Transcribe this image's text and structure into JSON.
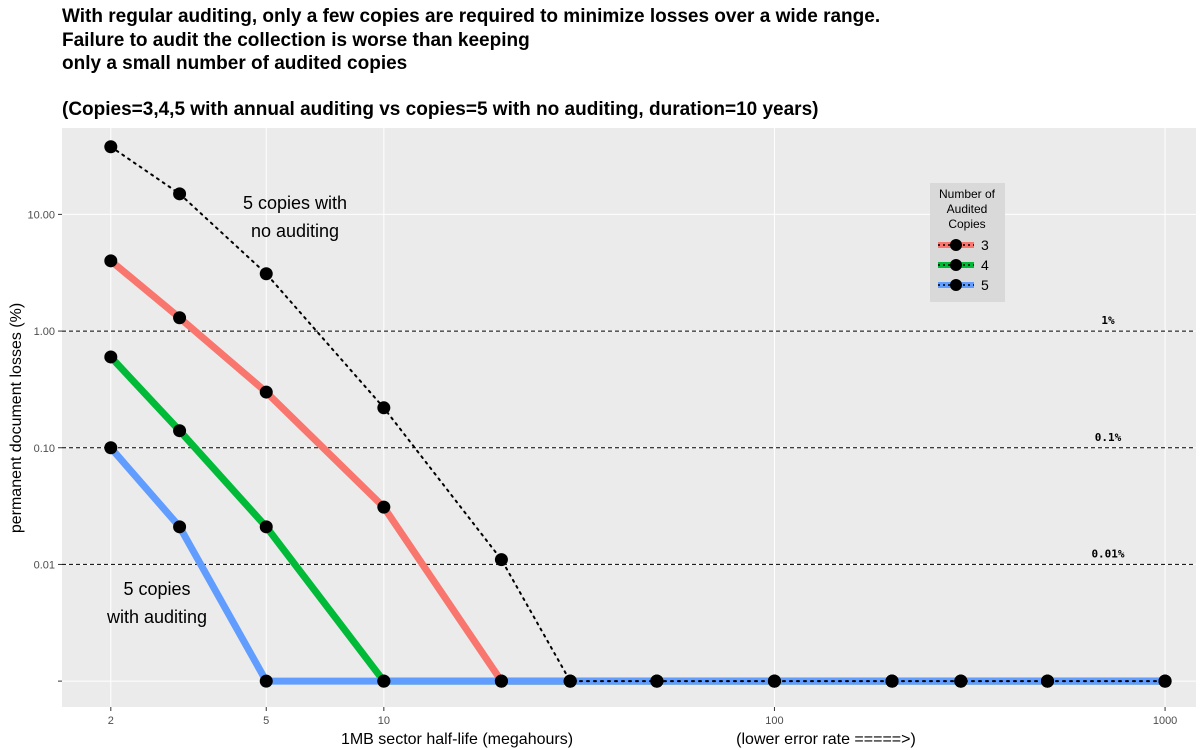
{
  "title_lines": [
    "With regular auditing, only a few copies are required to minimize losses over a wide range.",
    "Failure to audit the collection is worse than keeping",
    "only a small number of audited copies"
  ],
  "subtitle": "(Copies=3,4,5 with annual auditing vs copies=5 with no auditing, duration=10 years)",
  "annotations": {
    "no_audit": [
      "5 copies with",
      "no auditing"
    ],
    "with_audit": [
      "5 copies",
      "with auditing"
    ]
  },
  "reference_lines": [
    {
      "y": 1,
      "label": "1%"
    },
    {
      "y": 0.1,
      "label": "0.1%"
    },
    {
      "y": 0.01,
      "label": "0.01%"
    }
  ],
  "legend": {
    "title_lines": [
      "Number of",
      "Audited",
      "Copies"
    ],
    "items": [
      {
        "label": "3",
        "color": "#F8766D"
      },
      {
        "label": "4",
        "color": "#00BA38"
      },
      {
        "label": "5",
        "color": "#619CFF"
      }
    ]
  },
  "colors": {
    "panel_bg": "#EBEBEB",
    "grid": "#FFFFFF",
    "point": "#000000",
    "legend_bg": "#D9D9D9"
  },
  "chart_data": {
    "type": "line",
    "x_scale": "log",
    "y_scale": "log",
    "xlabel": "1MB sector half-life (megahours)",
    "xlabel_extra": "(lower error rate =====>)",
    "ylabel": "permanent document losses (%)",
    "x_ticks": [
      {
        "value": 2,
        "label": "2"
      },
      {
        "value": 5,
        "label": "5"
      },
      {
        "value": 10,
        "label": "10"
      },
      {
        "value": 100,
        "label": "100"
      },
      {
        "value": 1000,
        "label": "1000"
      }
    ],
    "y_ticks": [
      {
        "value": 0.001,
        "label": ""
      },
      {
        "value": 0.01,
        "label": "0.01"
      },
      {
        "value": 0.1,
        "label": "0.10"
      },
      {
        "value": 1,
        "label": "1.00"
      },
      {
        "value": 10,
        "label": "10.00"
      }
    ],
    "xlim": [
      1.5,
      1200
    ],
    "ylim": [
      0.0006,
      55
    ],
    "grid": true,
    "legend_position": "top-right",
    "series": [
      {
        "name": "3",
        "color": "#F8766D",
        "style": "solid",
        "x": [
          2,
          3,
          5,
          10,
          20,
          30,
          50,
          100,
          200,
          300,
          500,
          1000
        ],
        "y": [
          4.0,
          1.3,
          0.3,
          0.031,
          0.001,
          0.001,
          0.001,
          0.001,
          0.001,
          0.001,
          0.001,
          0.001
        ]
      },
      {
        "name": "4",
        "color": "#00BA38",
        "style": "solid",
        "x": [
          2,
          3,
          5,
          10,
          20,
          30,
          50,
          100,
          200,
          300,
          500,
          1000
        ],
        "y": [
          0.6,
          0.14,
          0.021,
          0.001,
          0.001,
          0.001,
          0.001,
          0.001,
          0.001,
          0.001,
          0.001,
          0.001
        ]
      },
      {
        "name": "5",
        "color": "#619CFF",
        "style": "solid",
        "x": [
          2,
          3,
          5,
          10,
          20,
          30,
          50,
          100,
          200,
          300,
          500,
          1000
        ],
        "y": [
          0.1,
          0.021,
          0.001,
          0.001,
          0.001,
          0.001,
          0.001,
          0.001,
          0.001,
          0.001,
          0.001,
          0.001
        ]
      },
      {
        "color": "#000000",
        "style": "dotted",
        "x": [
          2,
          3,
          5,
          10,
          20,
          30,
          50,
          100,
          200,
          300,
          500,
          1000
        ],
        "y": [
          38,
          15,
          3.1,
          0.22,
          0.011,
          0.001,
          0.001,
          0.001,
          0.001,
          0.001,
          0.001,
          0.001
        ]
      }
    ]
  }
}
